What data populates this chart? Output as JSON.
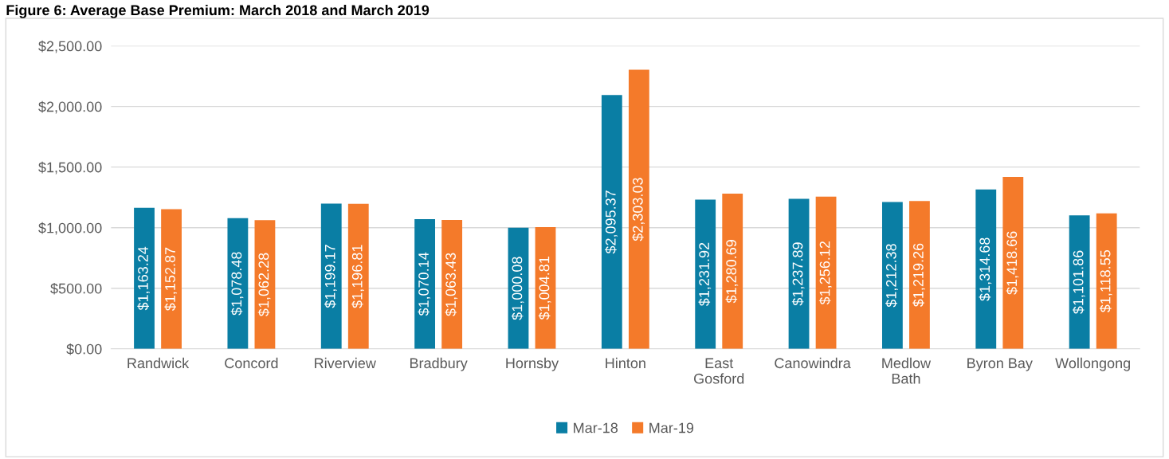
{
  "chart_data": {
    "type": "bar",
    "title": "Figure 6: Average Base Premium: March 2018 and March 2019",
    "categories": [
      "Randwick",
      "Concord",
      "Riverview",
      "Bradbury",
      "Hornsby",
      "Hinton",
      "East\nGosford",
      "Canowindra",
      "Medlow\nBath",
      "Byron Bay",
      "Wollongong"
    ],
    "series": [
      {
        "name": "Mar-18",
        "color": "#0a7ea4",
        "values": [
          1163.24,
          1078.48,
          1199.17,
          1070.14,
          1000.08,
          2095.37,
          1231.92,
          1237.89,
          1212.38,
          1314.68,
          1101.86
        ],
        "value_labels": [
          "$1,163.24",
          "$1,078.48",
          "$1,199.17",
          "$1,070.14",
          "$1,000.08",
          "$2,095.37",
          "$1,231.92",
          "$1,237.89",
          "$1,212.38",
          "$1,314.68",
          "$1,101.86"
        ]
      },
      {
        "name": "Mar-19",
        "color": "#f47a2a",
        "values": [
          1152.87,
          1062.28,
          1196.81,
          1063.43,
          1004.81,
          2303.03,
          1280.69,
          1256.12,
          1219.26,
          1418.66,
          1118.55
        ],
        "value_labels": [
          "$1,152.87",
          "$1,062.28",
          "$1,196.81",
          "$1,063.43",
          "$1,004.81",
          "$2,303.03",
          "$1,280.69",
          "$1,256.12",
          "$1,219.26",
          "$1,418.66",
          "$1,118.55"
        ]
      }
    ],
    "ylim": [
      0,
      2500
    ],
    "yticks": [
      {
        "value": 0,
        "label": "$0.00"
      },
      {
        "value": 500,
        "label": "$500.00"
      },
      {
        "value": 1000,
        "label": "$1,000.00"
      },
      {
        "value": 1500,
        "label": "$1,500.00"
      },
      {
        "value": 2000,
        "label": "$2,000.00"
      },
      {
        "value": 2500,
        "label": "$2,500.00"
      }
    ],
    "grid": "y",
    "legend": "bottom"
  }
}
